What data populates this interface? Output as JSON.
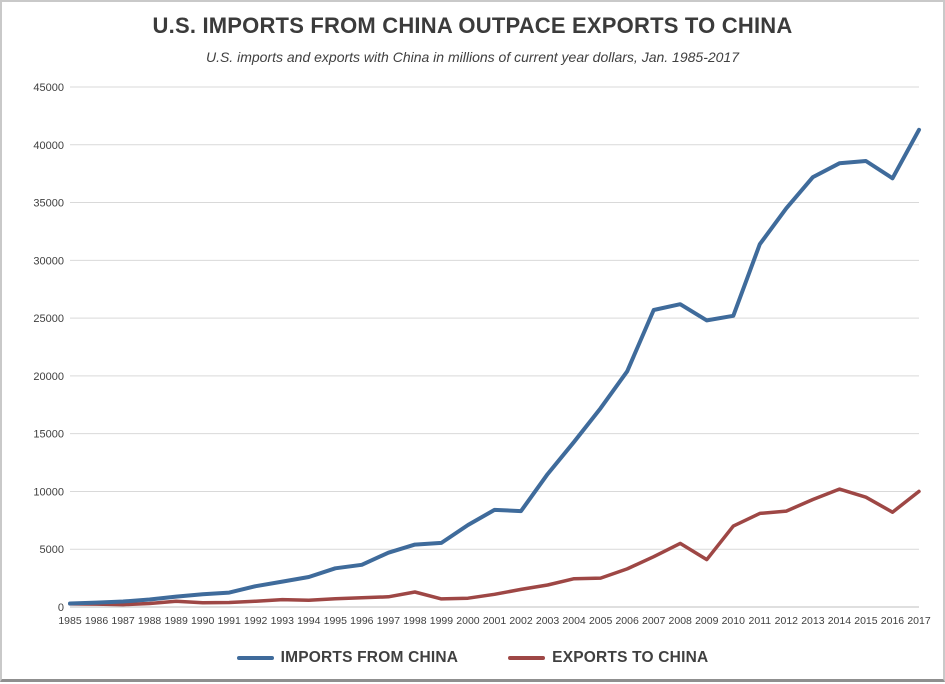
{
  "title": "U.S. IMPORTS FROM CHINA OUTPACE EXPORTS TO CHINA",
  "subtitle": "U.S. imports and exports with China in millions of current year dollars, Jan. 1985-2017",
  "chart_data": {
    "type": "line",
    "x": [
      1985,
      1986,
      1987,
      1988,
      1989,
      1990,
      1991,
      1992,
      1993,
      1994,
      1995,
      1996,
      1997,
      1998,
      1999,
      2000,
      2001,
      2002,
      2003,
      2004,
      2005,
      2006,
      2007,
      2008,
      2009,
      2010,
      2011,
      2012,
      2013,
      2014,
      2015,
      2016,
      2017
    ],
    "series": [
      {
        "name": "IMPORTS FROM CHINA",
        "color": "#3F6B9B",
        "values": [
          300,
          380,
          480,
          650,
          900,
          1100,
          1250,
          1800,
          2200,
          2600,
          3350,
          3650,
          4700,
          5400,
          5550,
          7100,
          8400,
          8300,
          11500,
          14300,
          17200,
          20400,
          25700,
          26200,
          24800,
          25200,
          31400,
          34500,
          37200,
          38400,
          38600,
          37100,
          41300
        ]
      },
      {
        "name": "EXPORTS TO CHINA",
        "color": "#9E4745",
        "values": [
          270,
          250,
          210,
          300,
          500,
          360,
          390,
          500,
          640,
          580,
          720,
          800,
          880,
          1300,
          700,
          760,
          1100,
          1520,
          1900,
          2450,
          2500,
          3300,
          4350,
          5500,
          4100,
          7000,
          8100,
          8300,
          9300,
          10200,
          9500,
          8200,
          10000
        ]
      }
    ],
    "ylim": [
      0,
      45000
    ],
    "ytick_step": 5000,
    "grid": "horizontal",
    "legend_position": "bottom",
    "colors": {
      "gridline": "#D9D9D9",
      "axis_line": "#BFBFBF",
      "tick_label": "#404040",
      "title": "#3B3B3B"
    }
  }
}
